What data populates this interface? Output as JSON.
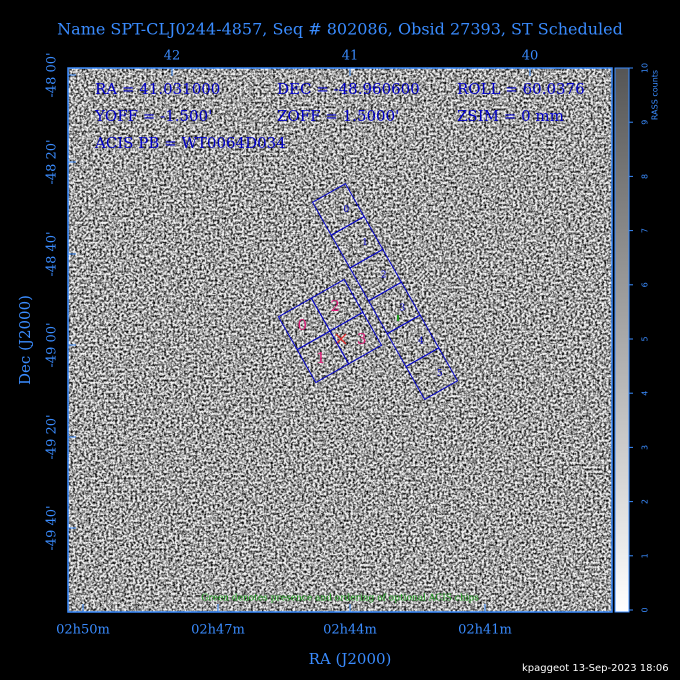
{
  "title": "Name SPT-CLJ0244-4857, Seq # 802086, Obsid 27393, ST Scheduled",
  "top_axis": {
    "ticks": [
      "42",
      "41",
      "40"
    ]
  },
  "left_axis": {
    "title": "Dec (J2000)",
    "ticks": [
      "-48 00'",
      "-48 20'",
      "-48 40'",
      "-49 00'",
      "-49 20'",
      "-49 40'"
    ]
  },
  "bottom_axis": {
    "title": "RA (J2000)",
    "ticks": [
      "02h50m",
      "02h47m",
      "02h44m",
      "02h41m"
    ]
  },
  "colorbar": {
    "title": "RASS counts",
    "ticks": [
      "0",
      "1",
      "2",
      "3",
      "4",
      "5",
      "6",
      "7",
      "8",
      "9",
      "10"
    ]
  },
  "info": [
    [
      "RA = 41.031000",
      "DEC = -48.960600",
      "ROLL = 60.0376"
    ],
    [
      "YOFF = -1.500'",
      "ZOFF = 1.5000'",
      "ZSIM = 0 mm"
    ],
    [
      "ACIS PB = WT0064D034"
    ]
  ],
  "acis_s_chips": [
    "0",
    "1",
    "2",
    "3",
    "4",
    "5"
  ],
  "acis_i_chips": [
    "0",
    "1",
    "2",
    "3"
  ],
  "note": "Green denotes presence and ordering of optional ACIS chips",
  "footer": "kpaggeot 13-Sep-2023 18:06"
}
